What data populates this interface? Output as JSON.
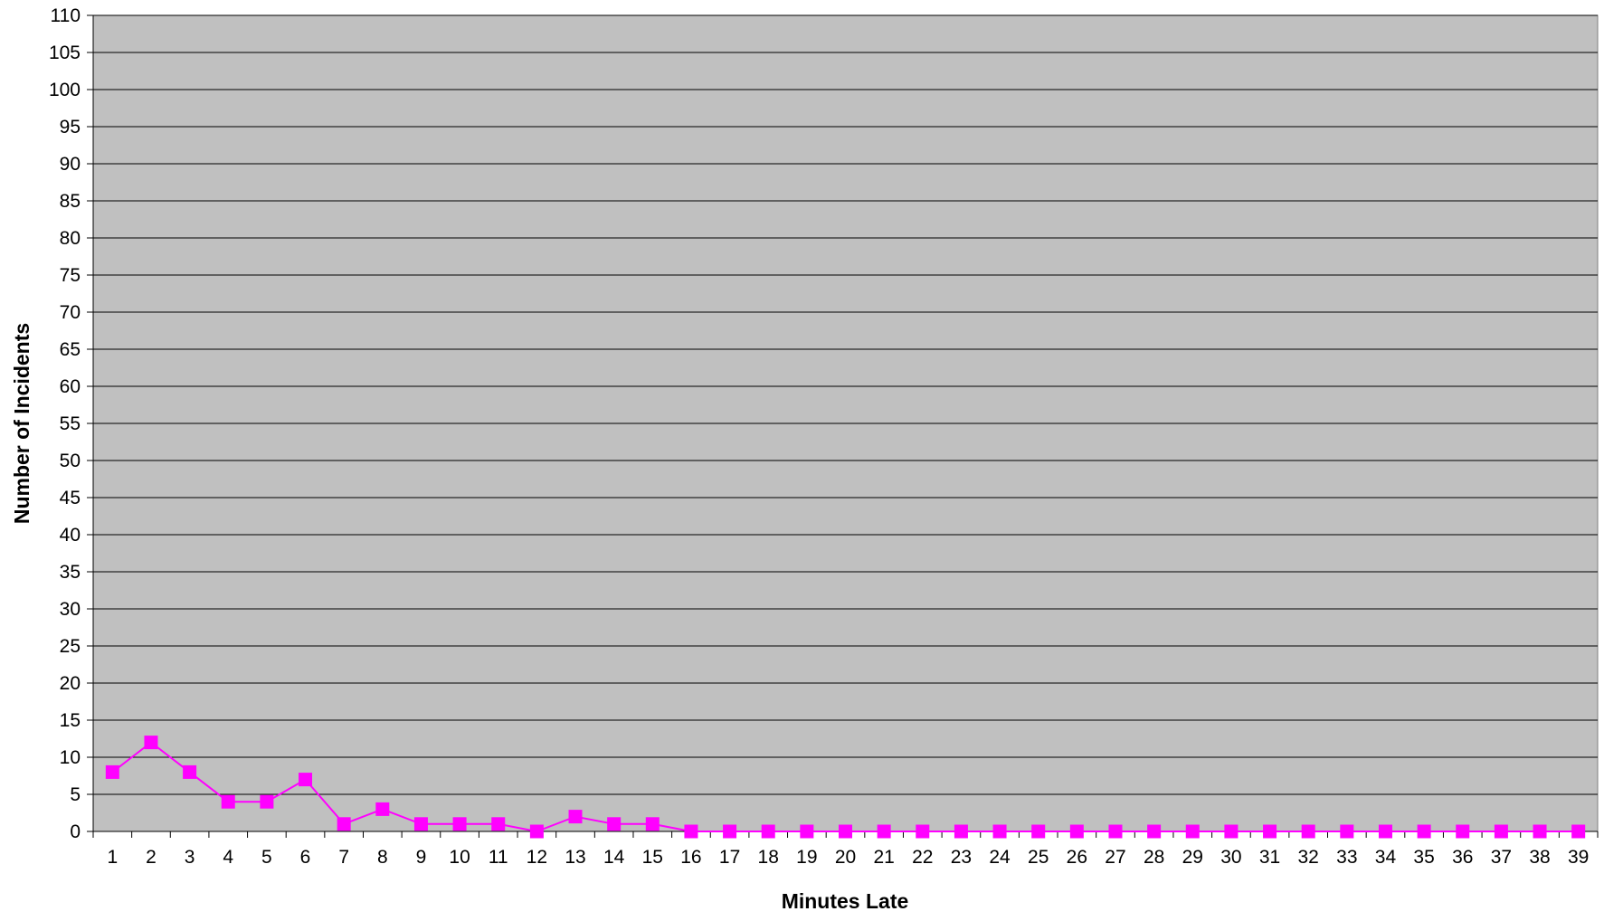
{
  "chart_data": {
    "type": "line",
    "title": "",
    "xlabel": "Minutes Late",
    "ylabel": "Number of Incidents",
    "categories": [
      "1",
      "2",
      "3",
      "4",
      "5",
      "6",
      "7",
      "8",
      "9",
      "10",
      "11",
      "12",
      "13",
      "14",
      "15",
      "16",
      "17",
      "18",
      "19",
      "20",
      "21",
      "22",
      "23",
      "24",
      "25",
      "26",
      "27",
      "28",
      "29",
      "30",
      "31",
      "32",
      "33",
      "34",
      "35",
      "36",
      "37",
      "38",
      "39"
    ],
    "series": [
      {
        "values": [
          8,
          12,
          8,
          4,
          4,
          7,
          1,
          3,
          1,
          1,
          1,
          0,
          2,
          1,
          1,
          0,
          0,
          0,
          0,
          0,
          0,
          0,
          0,
          0,
          0,
          0,
          0,
          0,
          0,
          0,
          0,
          0,
          0,
          0,
          0,
          0,
          0,
          0,
          0
        ],
        "color": "#ff00ff",
        "marker": "square"
      }
    ],
    "ylim": [
      0,
      110
    ],
    "ytick_step": 5,
    "grid": true,
    "legend": "none",
    "plot_background": "#c0c0c0",
    "gridline_color": "#000000"
  }
}
